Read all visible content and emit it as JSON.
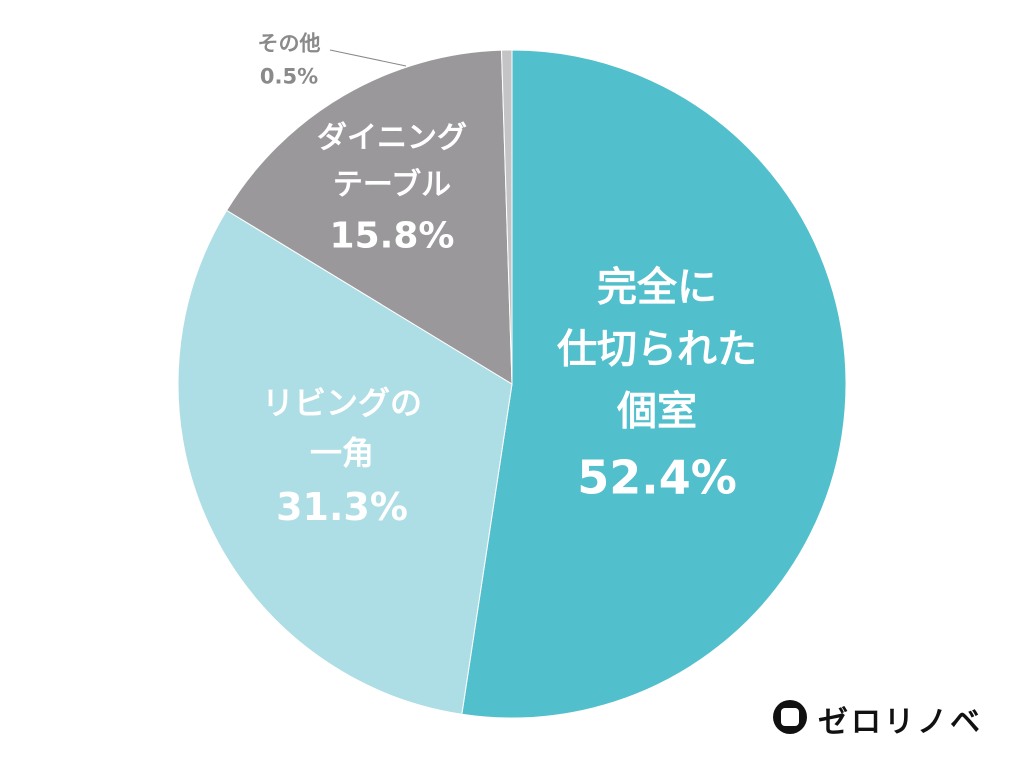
{
  "chart_data": {
    "type": "pie",
    "categories": [
      "完全に\n仕切られた\n個室",
      "リビングの\n一角",
      "ダイニング\nテーブル",
      "その他"
    ],
    "values": [
      52.4,
      31.3,
      15.8,
      0.5
    ],
    "value_labels": [
      "52.4%",
      "31.3%",
      "15.8%",
      "0.5%"
    ],
    "colors": [
      "#52bfcc",
      "#addde5",
      "#9b989c",
      "#c4c3c5"
    ]
  },
  "brand": "ゼロリノベ"
}
